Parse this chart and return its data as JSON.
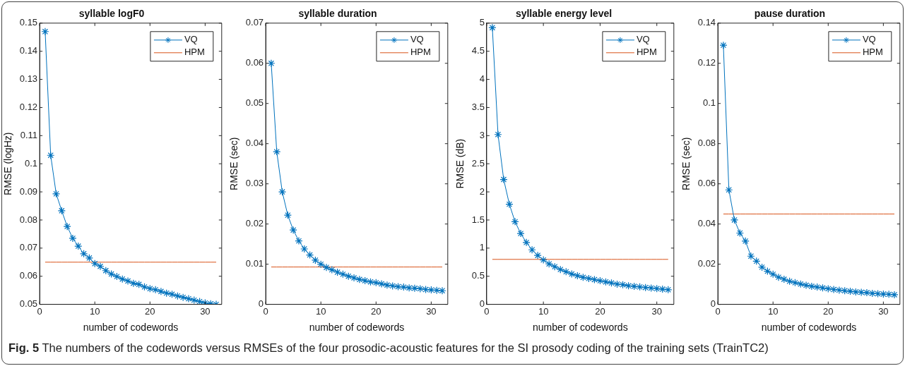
{
  "chart_data": [
    {
      "type": "line",
      "title": "syllable logF0",
      "xlabel": "number of codewords",
      "ylabel": "RMSE (logHz)",
      "marker": "cross",
      "legend": "top right",
      "xlim": [
        0,
        33
      ],
      "xticks": [
        0,
        10,
        20,
        30
      ],
      "ylim": [
        0.05,
        0.15
      ],
      "yticks": [
        0.05,
        0.06,
        0.07,
        0.08,
        0.09,
        0.1,
        0.11,
        0.12,
        0.13,
        0.14,
        0.15
      ],
      "x": [
        1,
        2,
        3,
        4,
        5,
        6,
        7,
        8,
        9,
        10,
        11,
        12,
        13,
        14,
        15,
        16,
        17,
        18,
        19,
        20,
        21,
        22,
        23,
        24,
        25,
        26,
        27,
        28,
        29,
        30,
        31,
        32
      ],
      "series": [
        {
          "name": "VQ",
          "color": "#0072bd",
          "values": [
            0.147,
            0.103,
            0.0893,
            0.0833,
            0.0777,
            0.0735,
            0.0707,
            0.068,
            0.0665,
            0.0645,
            0.0635,
            0.062,
            0.0608,
            0.0599,
            0.059,
            0.0583,
            0.0575,
            0.0571,
            0.0562,
            0.0556,
            0.0552,
            0.0546,
            0.054,
            0.0536,
            0.053,
            0.0525,
            0.052,
            0.0515,
            0.051,
            0.0505,
            0.0502,
            0.05
          ]
        },
        {
          "name": "HPM",
          "color": "#d95319",
          "marker": "none",
          "values": [
            0.065,
            0.065,
            0.065,
            0.065,
            0.065,
            0.065,
            0.065,
            0.065,
            0.065,
            0.065,
            0.065,
            0.065,
            0.065,
            0.065,
            0.065,
            0.065,
            0.065,
            0.065,
            0.065,
            0.065,
            0.065,
            0.065,
            0.065,
            0.065,
            0.065,
            0.065,
            0.065,
            0.065,
            0.065,
            0.065,
            0.065,
            0.065
          ]
        }
      ],
      "annotations": [
        "Fig. 5 The numbers of the codewords versus RMSEs of the four prosodic-acoustic features for the SI prosody coding of the training sets (TrainTC2)"
      ]
    },
    {
      "type": "line",
      "title": "syllable duration",
      "xlabel": "number of codewords",
      "ylabel": "RMSE (sec)",
      "marker": "cross",
      "legend": "top right",
      "xlim": [
        0,
        33
      ],
      "xticks": [
        0,
        10,
        20,
        30
      ],
      "ylim": [
        0,
        0.07
      ],
      "yticks": [
        0,
        0.01,
        0.02,
        0.03,
        0.04,
        0.05,
        0.06,
        0.07
      ],
      "x": [
        1,
        2,
        3,
        4,
        5,
        6,
        7,
        8,
        9,
        10,
        11,
        12,
        13,
        14,
        15,
        16,
        17,
        18,
        19,
        20,
        21,
        22,
        23,
        24,
        25,
        26,
        27,
        28,
        29,
        30,
        31,
        32
      ],
      "series": [
        {
          "name": "VQ",
          "color": "#0072bd",
          "values": [
            0.06,
            0.038,
            0.028,
            0.0222,
            0.0185,
            0.0158,
            0.0138,
            0.0123,
            0.011,
            0.01,
            0.0092,
            0.0086,
            0.008,
            0.0075,
            0.007,
            0.0066,
            0.0062,
            0.0059,
            0.0056,
            0.0054,
            0.0051,
            0.0048,
            0.0046,
            0.0044,
            0.0043,
            0.0041,
            0.004,
            0.0039,
            0.0037,
            0.0036,
            0.0035,
            0.0034
          ]
        },
        {
          "name": "HPM",
          "color": "#d95319",
          "marker": "none",
          "values": [
            0.0093,
            0.0093,
            0.0093,
            0.0093,
            0.0093,
            0.0093,
            0.0093,
            0.0093,
            0.0093,
            0.0093,
            0.0093,
            0.0093,
            0.0093,
            0.0093,
            0.0093,
            0.0093,
            0.0093,
            0.0093,
            0.0093,
            0.0093,
            0.0093,
            0.0093,
            0.0093,
            0.0093,
            0.0093,
            0.0093,
            0.0093,
            0.0093,
            0.0093,
            0.0093,
            0.0093,
            0.0093
          ]
        }
      ]
    },
    {
      "type": "line",
      "title": "syllable energy level",
      "xlabel": "number of codewords",
      "ylabel": "RMSE (dB)",
      "marker": "cross",
      "legend": "top right",
      "xlim": [
        0,
        33
      ],
      "xticks": [
        0,
        10,
        20,
        30
      ],
      "ylim": [
        0,
        5
      ],
      "yticks": [
        0,
        0.5,
        1,
        1.5,
        2,
        2.5,
        3,
        3.5,
        4,
        4.5,
        5
      ],
      "x": [
        1,
        2,
        3,
        4,
        5,
        6,
        7,
        8,
        9,
        10,
        11,
        12,
        13,
        14,
        15,
        16,
        17,
        18,
        19,
        20,
        21,
        22,
        23,
        24,
        25,
        26,
        27,
        28,
        29,
        30,
        31,
        32
      ],
      "series": [
        {
          "name": "VQ",
          "color": "#0072bd",
          "values": [
            4.92,
            3.02,
            2.22,
            1.78,
            1.47,
            1.26,
            1.1,
            0.97,
            0.87,
            0.79,
            0.72,
            0.67,
            0.62,
            0.58,
            0.54,
            0.51,
            0.48,
            0.46,
            0.44,
            0.42,
            0.4,
            0.38,
            0.36,
            0.35,
            0.33,
            0.32,
            0.31,
            0.3,
            0.29,
            0.28,
            0.27,
            0.26
          ]
        },
        {
          "name": "HPM",
          "color": "#d95319",
          "marker": "none",
          "values": [
            0.8,
            0.8,
            0.8,
            0.8,
            0.8,
            0.8,
            0.8,
            0.8,
            0.8,
            0.8,
            0.8,
            0.8,
            0.8,
            0.8,
            0.8,
            0.8,
            0.8,
            0.8,
            0.8,
            0.8,
            0.8,
            0.8,
            0.8,
            0.8,
            0.8,
            0.8,
            0.8,
            0.8,
            0.8,
            0.8,
            0.8,
            0.8
          ]
        }
      ]
    },
    {
      "type": "line",
      "title": "pause duration",
      "xlabel": "number of codewords",
      "ylabel": "RMSE (sec)",
      "marker": "cross",
      "legend": "top right",
      "xlim": [
        0,
        33
      ],
      "xticks": [
        0,
        10,
        20,
        30
      ],
      "ylim": [
        0,
        0.14
      ],
      "yticks": [
        0,
        0.02,
        0.04,
        0.06,
        0.08,
        0.1,
        0.12,
        0.14
      ],
      "x": [
        1,
        2,
        3,
        4,
        5,
        6,
        7,
        8,
        9,
        10,
        11,
        12,
        13,
        14,
        15,
        16,
        17,
        18,
        19,
        20,
        21,
        22,
        23,
        24,
        25,
        26,
        27,
        28,
        29,
        30,
        31,
        32
      ],
      "series": [
        {
          "name": "VQ",
          "color": "#0072bd",
          "values": [
            0.129,
            0.057,
            0.042,
            0.0355,
            0.0315,
            0.024,
            0.0215,
            0.0185,
            0.0165,
            0.015,
            0.0135,
            0.0125,
            0.0115,
            0.0108,
            0.0101,
            0.0095,
            0.009,
            0.0086,
            0.0082,
            0.0078,
            0.0074,
            0.0071,
            0.0068,
            0.0065,
            0.0062,
            0.006,
            0.0058,
            0.0055,
            0.0053,
            0.0051,
            0.005,
            0.0048
          ]
        },
        {
          "name": "HPM",
          "color": "#d95319",
          "marker": "none",
          "values": [
            0.045,
            0.045,
            0.045,
            0.045,
            0.045,
            0.045,
            0.045,
            0.045,
            0.045,
            0.045,
            0.045,
            0.045,
            0.045,
            0.045,
            0.045,
            0.045,
            0.045,
            0.045,
            0.045,
            0.045,
            0.045,
            0.045,
            0.045,
            0.045,
            0.045,
            0.045,
            0.045,
            0.045,
            0.045,
            0.045,
            0.045,
            0.045
          ]
        }
      ]
    }
  ]
}
